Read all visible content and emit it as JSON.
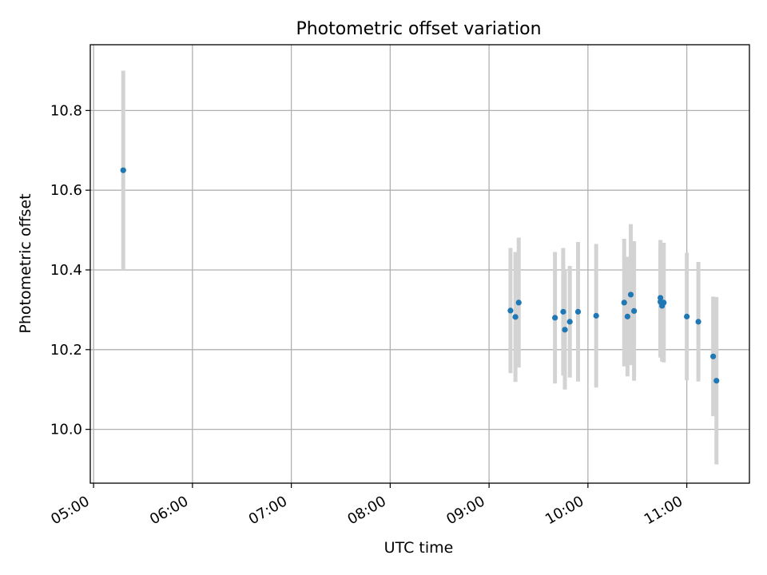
{
  "chart_data": {
    "type": "scatter",
    "title": "Photometric offset variation",
    "xlabel": "UTC time",
    "ylabel": "Photometric offset",
    "x_axis_type": "time",
    "xlim": [
      "04:58",
      "11:38"
    ],
    "ylim": [
      9.865,
      10.965
    ],
    "grid": true,
    "legend": "none",
    "colors": {
      "points": "#1f77b4",
      "error_bars": "#d3d3d3",
      "grid": "#b0b0b0"
    },
    "x_ticks": [
      "05:00",
      "06:00",
      "07:00",
      "08:00",
      "09:00",
      "10:00",
      "11:00"
    ],
    "y_ticks": [
      10.0,
      10.2,
      10.4,
      10.6,
      10.8
    ],
    "y_tick_labels": [
      "10.0",
      "10.2",
      "10.4",
      "10.6",
      "10.8"
    ],
    "points": [
      {
        "x": "05:18",
        "y": 10.65,
        "err": 0.25
      },
      {
        "x": "09:13",
        "y": 10.298,
        "err": 0.157
      },
      {
        "x": "09:16",
        "y": 10.282,
        "err": 0.163
      },
      {
        "x": "09:18",
        "y": 10.318,
        "err": 0.163
      },
      {
        "x": "09:40",
        "y": 10.28,
        "err": 0.165
      },
      {
        "x": "09:45",
        "y": 10.295,
        "err": 0.16
      },
      {
        "x": "09:46",
        "y": 10.25,
        "err": 0.15
      },
      {
        "x": "09:49",
        "y": 10.27,
        "err": 0.14
      },
      {
        "x": "09:54",
        "y": 10.295,
        "err": 0.175
      },
      {
        "x": "10:05",
        "y": 10.285,
        "err": 0.18
      },
      {
        "x": "10:22",
        "y": 10.318,
        "err": 0.16
      },
      {
        "x": "10:24",
        "y": 10.283,
        "err": 0.15
      },
      {
        "x": "10:26",
        "y": 10.338,
        "err": 0.177
      },
      {
        "x": "10:28",
        "y": 10.297,
        "err": 0.175
      },
      {
        "x": "10:44",
        "y": 10.33,
        "err": 0.145
      },
      {
        "x": "10:44",
        "y": 10.32,
        "err": 0.14
      },
      {
        "x": "10:45",
        "y": 10.31,
        "err": 0.14
      },
      {
        "x": "10:46",
        "y": 10.318,
        "err": 0.15
      },
      {
        "x": "11:00",
        "y": 10.283,
        "err": 0.16
      },
      {
        "x": "11:07",
        "y": 10.27,
        "err": 0.15
      },
      {
        "x": "11:16",
        "y": 10.183,
        "err": 0.15
      },
      {
        "x": "11:18",
        "y": 10.122,
        "err": 0.21
      }
    ]
  }
}
